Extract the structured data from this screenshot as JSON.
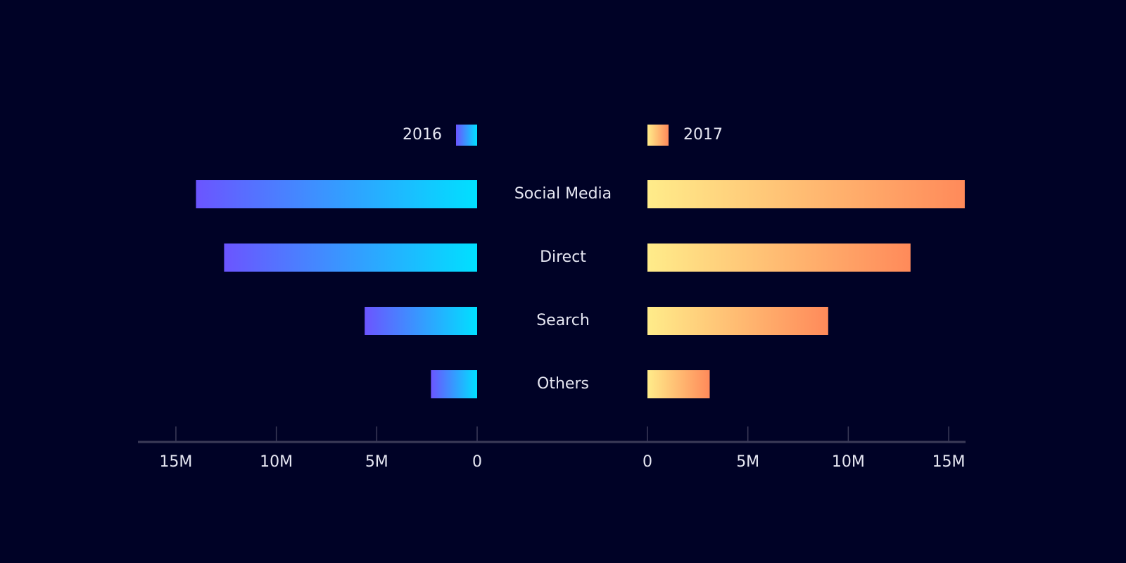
{
  "chart_data": {
    "type": "butterfly",
    "categories": [
      "Social Media",
      "Direct",
      "Search",
      "Others"
    ],
    "series": [
      {
        "name": "2016",
        "color": [
          "#6b55ff",
          "#00e0ff"
        ],
        "side": "left",
        "values": [
          14000000,
          12600000,
          5600000,
          2300000
        ]
      },
      {
        "name": "2017",
        "color": [
          "#ffec8a",
          "#ff8a5a"
        ],
        "side": "right",
        "values": [
          15800000,
          13100000,
          9000000,
          3100000
        ]
      }
    ],
    "xlim": [
      0,
      16750000
    ],
    "xticks": [
      0,
      {
        "value": 5000000,
        "label": "5M"
      },
      {
        "value": 10000000,
        "label": "10M"
      },
      {
        "value": 15000000,
        "label": "15M"
      }
    ]
  }
}
